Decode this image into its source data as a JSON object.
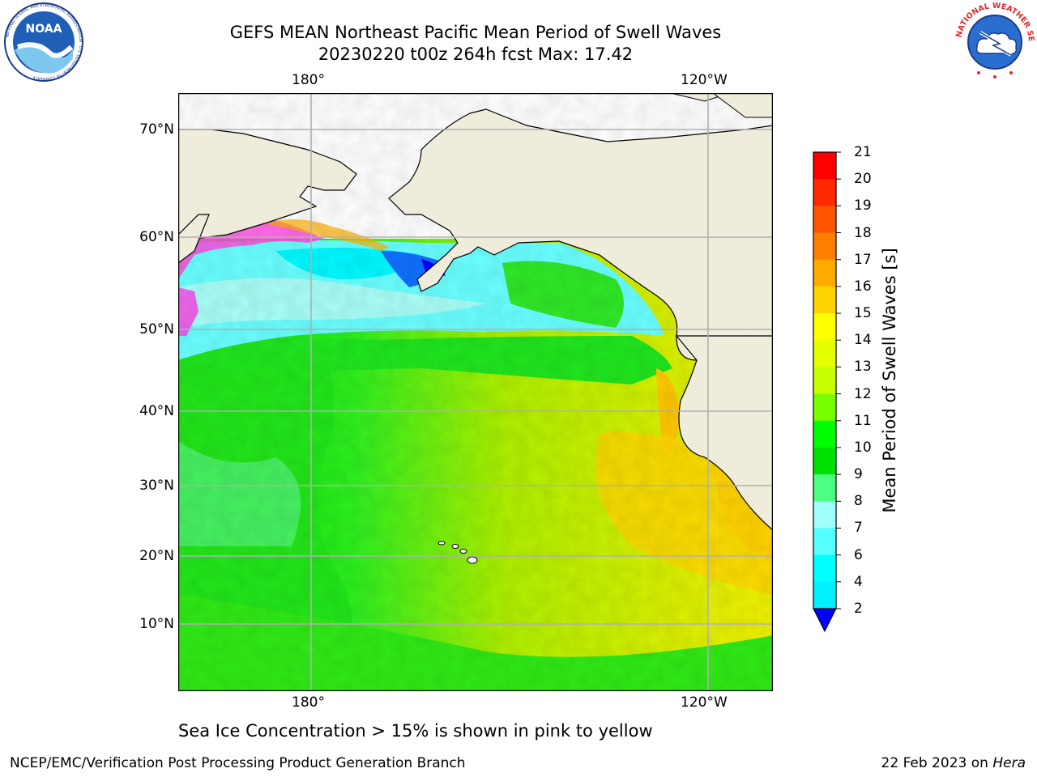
{
  "header": {
    "title_line1": "GEFS MEAN Northeast Pacific Mean Period of Swell Waves",
    "title_line2": "20230220 t00z 264h fcst   Max: 17.42"
  },
  "logos": {
    "noaa": {
      "text": "NOAA",
      "icon": "noaa-logo-icon",
      "ring_text": "NATIONAL OCEANIC AND ATMOSPHERIC ADMINISTRATION · U.S. DEPARTMENT OF COMMERCE"
    },
    "nws": {
      "icon": "nws-logo-icon",
      "ring_text": "NATIONAL WEATHER SERVICE"
    }
  },
  "map": {
    "lon_labels_top": [
      "180°",
      "120°W"
    ],
    "lon_labels_bottom": [
      "180°",
      "120°W"
    ],
    "lat_labels": [
      "70°N",
      "60°N",
      "50°N",
      "40°N",
      "30°N",
      "20°N",
      "10°N"
    ],
    "land_color": "#efecdc",
    "ocean_missing_color": "#ffffff",
    "gridline_color": "#b0b0b0"
  },
  "colorbar": {
    "title": "Mean Period of Swell Waves [s]",
    "ticks": [
      "21",
      "20",
      "19",
      "18",
      "17",
      "16",
      "15",
      "14",
      "13",
      "12",
      "11",
      "10",
      "9",
      "8",
      "7",
      "6",
      "4",
      "2"
    ],
    "colors_top_to_bottom": [
      "#ff0000",
      "#ff2a00",
      "#ff5500",
      "#ff7f00",
      "#ffaa00",
      "#ffd400",
      "#ffff00",
      "#e6ff00",
      "#c8ff00",
      "#78ff00",
      "#00ff00",
      "#00e100",
      "#4cff82",
      "#a0fffa",
      "#55ffff",
      "#00ffff",
      "#00f0ff",
      "#0078ff"
    ],
    "extend_color": "#0000ff"
  },
  "note": "Sea Ice Concentration > 15% is shown in pink to yellow",
  "footer": {
    "left": "NCEP/EMC/Verification Post Processing Product Generation Branch",
    "right_date": "22 Feb 2023 on ",
    "right_host": "Hera"
  }
}
